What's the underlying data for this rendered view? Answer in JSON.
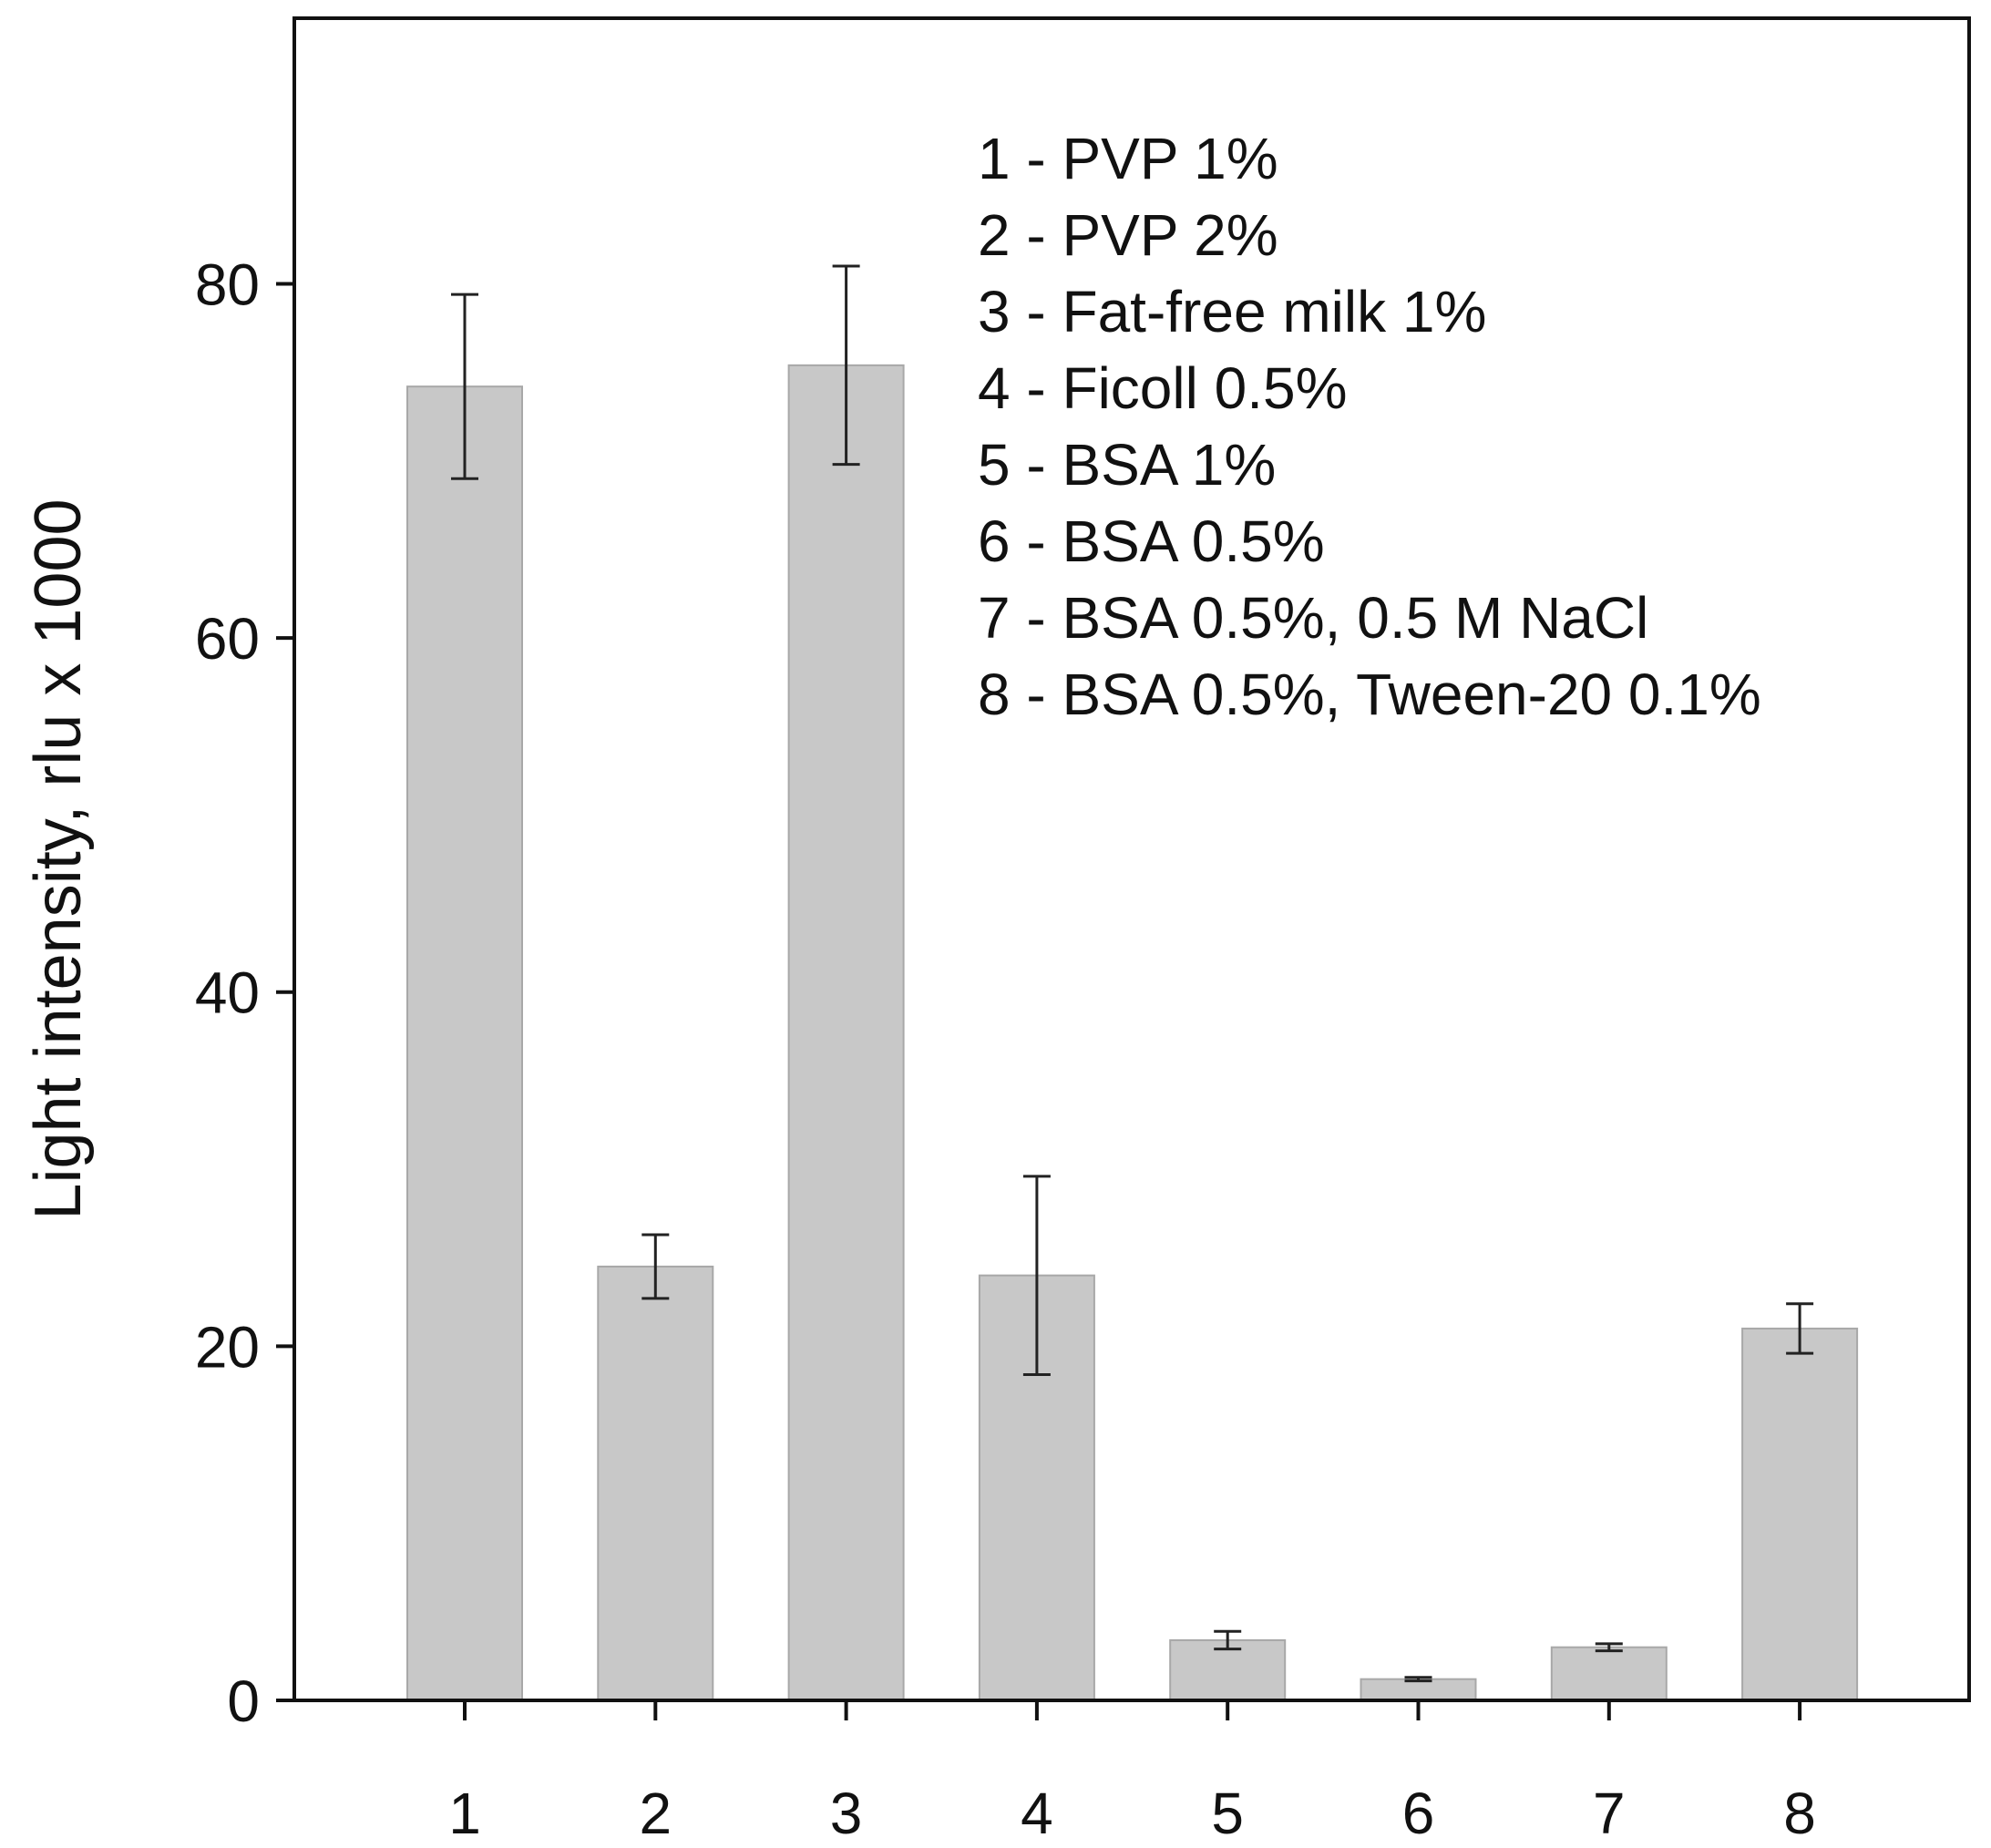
{
  "chart_data": {
    "type": "bar",
    "title": "",
    "xlabel": "",
    "ylabel": "Light intensity, rlu x 1000",
    "categories": [
      "1",
      "2",
      "3",
      "4",
      "5",
      "6",
      "7",
      "8"
    ],
    "values": [
      74.2,
      24.5,
      75.4,
      24.0,
      3.4,
      1.2,
      3.0,
      21.0
    ],
    "errors": [
      5.2,
      1.8,
      5.6,
      5.6,
      0.5,
      0.1,
      0.2,
      1.4
    ],
    "ylim": [
      0,
      95
    ],
    "yticks": [
      0,
      20,
      40,
      60,
      80
    ],
    "grid": false,
    "bar_color": "#c8c8c8",
    "legend": {
      "placement": "top-right",
      "entries": [
        "1 - PVP 1%",
        "2 - PVP 2%",
        "3 - Fat-free milk 1%",
        "4 - Ficoll 0.5%",
        "5 - BSA 1%",
        "6 - BSA 0.5%",
        "7 - BSA 0.5%, 0.5 M NaCl",
        "8 - BSA 0.5%, Tween-20 0.1%"
      ]
    }
  }
}
